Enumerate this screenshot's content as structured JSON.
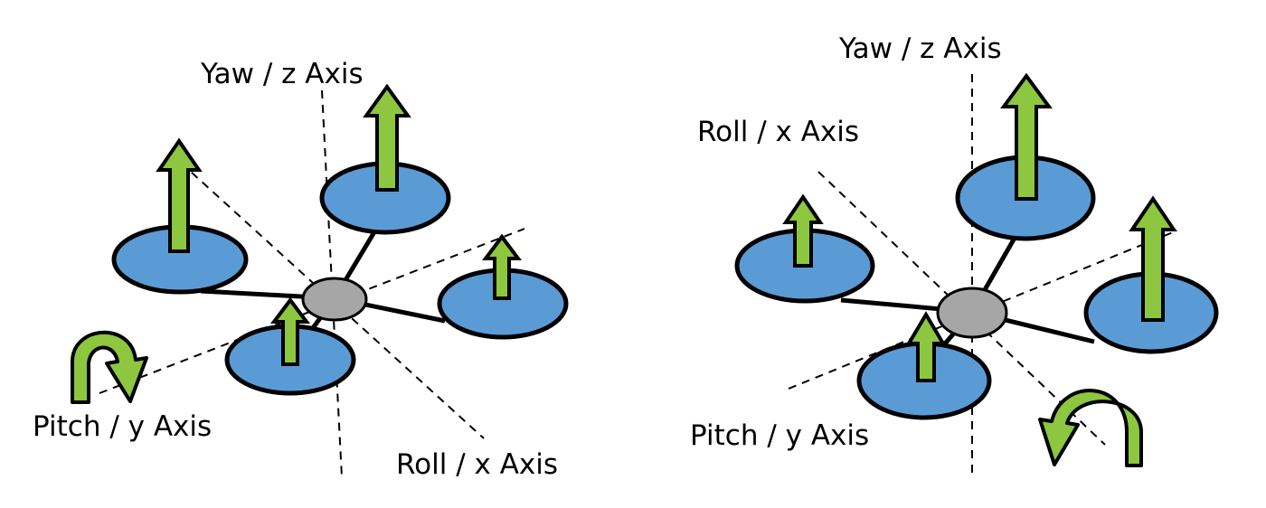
{
  "colors": {
    "rotor_fill": "#5b9bd5",
    "hub_fill": "#a6a6a6",
    "arrow_fill": "#8dc63f",
    "line": "#000000"
  },
  "left_quad": {
    "yaw_label": "Yaw / z Axis",
    "roll_label": "Roll / x Axis",
    "pitch_label": "Pitch / y Axis",
    "rotation_indicator": "pitch"
  },
  "right_quad": {
    "yaw_label": "Yaw / z Axis",
    "roll_label": "Roll / x Axis",
    "pitch_label": "Pitch / y Axis",
    "rotation_indicator": "roll"
  }
}
